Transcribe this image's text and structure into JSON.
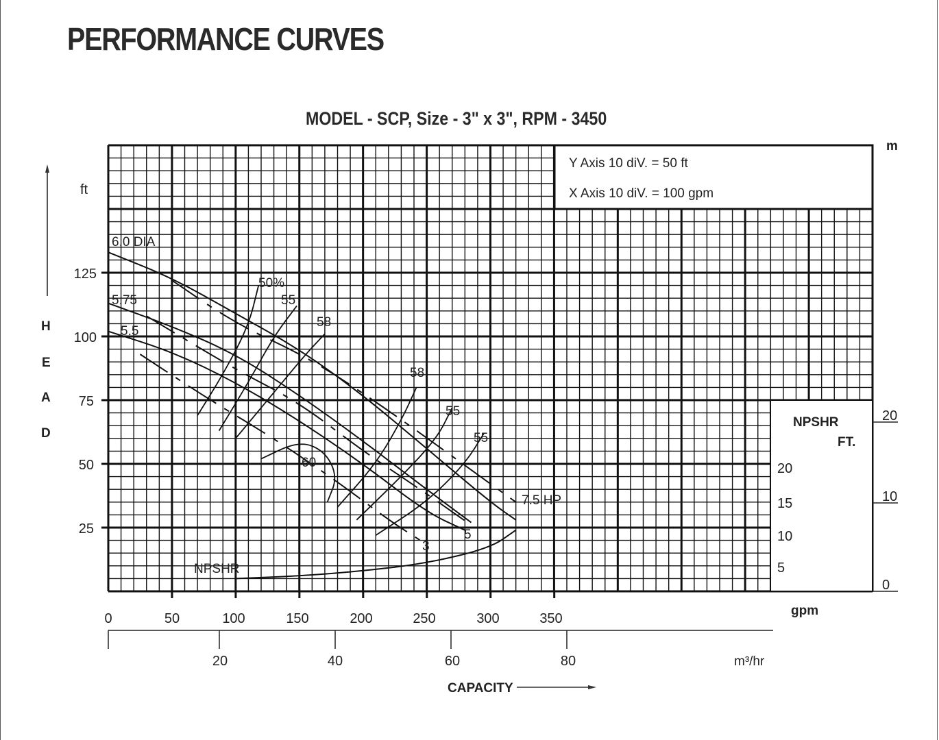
{
  "page": {
    "title": "PERFORMANCE CURVES",
    "subtitle": "MODEL - SCP, Size - 3\" x 3\", RPM - 3450"
  },
  "legend_box": {
    "line1": "Y Axis 10 diV. = 50 ft",
    "line2": "X Axis 10 diV. = 100 gpm"
  },
  "axes": {
    "y_unit": "ft",
    "y_title_letters": [
      "H",
      "E",
      "A",
      "D"
    ],
    "y_ticks": [
      "125",
      "100",
      "75",
      "50",
      "25"
    ],
    "x_ticks_gpm": [
      "0",
      "50",
      "100",
      "150",
      "200",
      "250",
      "300",
      "350"
    ],
    "x_unit_gpm": "gpm",
    "x_ticks_m3hr": [
      "20",
      "40",
      "60",
      "80"
    ],
    "x_unit_m3hr": "m³/hr",
    "x_title": "CAPACITY",
    "right_unit": "m",
    "right_ticks": [
      "20",
      "10",
      "0"
    ],
    "npshr_title": "NPSHR",
    "npshr_unit": "FT.",
    "npshr_ticks": [
      "20",
      "15",
      "10",
      "5"
    ]
  },
  "curve_labels": {
    "dia_60": "6.0 DIA",
    "dia_575": "5.75",
    "dia_55": "5.5",
    "eff_50": "50%",
    "eff_55a": "55",
    "eff_58a": "58",
    "eff_60": "60",
    "eff_58b": "58",
    "eff_55b": "55",
    "eff_55c": "55",
    "hp_75": "7.5 HP",
    "hp_5": "5",
    "hp_3": "3",
    "npshr": "NPSHR"
  },
  "chart_data": {
    "type": "line",
    "title": "MODEL - SCP, Size - 3\" x 3\", RPM - 3450",
    "xlabel": "CAPACITY (gpm)",
    "ylabel": "HEAD (ft)",
    "xlim": [
      0,
      600
    ],
    "ylim": [
      0,
      175
    ],
    "grid": true,
    "secondary_x": {
      "label": "m³/hr",
      "ticks": [
        20,
        40,
        60,
        80
      ]
    },
    "secondary_y": {
      "label": "m",
      "ticks": [
        0,
        10,
        20
      ]
    },
    "series": [
      {
        "name": "6.0 DIA",
        "style": "solid",
        "x": [
          0,
          50,
          100,
          150,
          200,
          250,
          300,
          320
        ],
        "y": [
          133,
          123,
          109,
          95,
          77,
          56,
          35,
          28
        ]
      },
      {
        "name": "5.75",
        "style": "solid",
        "x": [
          0,
          50,
          100,
          150,
          200,
          250,
          285
        ],
        "y": [
          113,
          104,
          93,
          77,
          59,
          40,
          27
        ]
      },
      {
        "name": "5.5",
        "style": "solid",
        "x": [
          0,
          50,
          100,
          150,
          200,
          250,
          280
        ],
        "y": [
          102,
          94,
          82,
          67,
          50,
          31,
          24
        ]
      },
      {
        "name": "7.5 HP",
        "style": "dashed",
        "x": [
          50,
          100,
          160,
          220,
          270,
          320
        ],
        "y": [
          122,
          105,
          91,
          71,
          53,
          35
        ]
      },
      {
        "name": "5 HP",
        "style": "dashed",
        "x": [
          30,
          100,
          150,
          200,
          245,
          282
        ],
        "y": [
          108,
          87,
          74,
          55,
          40,
          27
        ]
      },
      {
        "name": "3 HP",
        "style": "dashed",
        "x": [
          25,
          80,
          130,
          180,
          220,
          245
        ],
        "y": [
          93,
          75,
          60,
          43,
          28,
          20
        ]
      },
      {
        "name": "50%",
        "style": "efficiency",
        "x": [
          70,
          90,
          110,
          118
        ],
        "y": [
          69,
          85,
          104,
          120
        ]
      },
      {
        "name": "55% (left)",
        "style": "efficiency",
        "x": [
          87,
          110,
          130,
          148
        ],
        "y": [
          63,
          82,
          100,
          112
        ]
      },
      {
        "name": "58% (left)",
        "style": "efficiency",
        "x": [
          100,
          130,
          155,
          170
        ],
        "y": [
          60,
          78,
          93,
          101
        ]
      },
      {
        "name": "60%",
        "style": "efficiency",
        "x": [
          120,
          150,
          170,
          180,
          172
        ],
        "y": [
          52,
          59,
          55,
          45,
          35
        ]
      },
      {
        "name": "58% (right)",
        "style": "efficiency",
        "x": [
          180,
          210,
          230,
          242
        ],
        "y": [
          33,
          50,
          67,
          80
        ]
      },
      {
        "name": "55% (mid)",
        "style": "efficiency",
        "x": [
          195,
          230,
          258,
          270
        ],
        "y": [
          28,
          45,
          60,
          72
        ]
      },
      {
        "name": "55% (right)",
        "style": "efficiency",
        "x": [
          210,
          250,
          280,
          295
        ],
        "y": [
          22,
          35,
          50,
          62
        ]
      },
      {
        "name": "NPSHR",
        "style": "solid",
        "x": [
          100,
          150,
          200,
          250,
          300,
          320
        ],
        "y": [
          5,
          6,
          8,
          11,
          17,
          24
        ]
      }
    ]
  }
}
